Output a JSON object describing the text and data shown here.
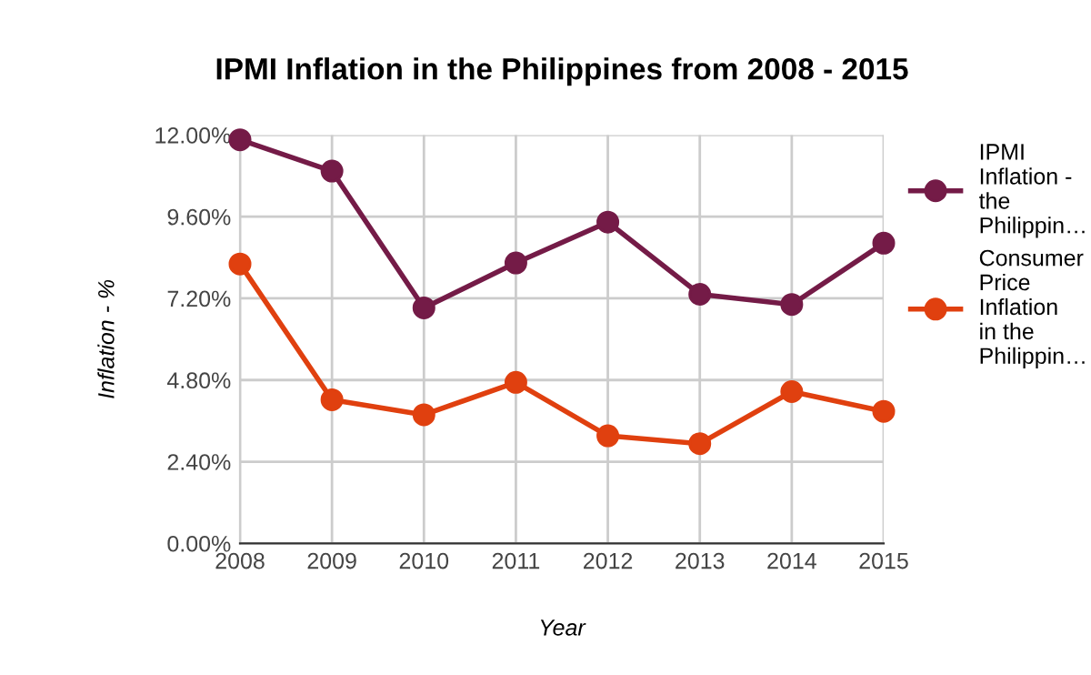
{
  "chart_data": {
    "type": "line",
    "title": "IPMI Inflation in the Philippines from 2008 - 2015",
    "xlabel": "Year",
    "ylabel": "Inflation - %",
    "categories": [
      "2008",
      "2009",
      "2010",
      "2011",
      "2012",
      "2013",
      "2014",
      "2015"
    ],
    "series": [
      {
        "name": "IPMI Inflation - the Philippin…",
        "color": "#741b47",
        "values": [
          11.86,
          10.94,
          6.92,
          8.24,
          9.44,
          7.32,
          7.02,
          8.82
        ]
      },
      {
        "name": "Consumer Price Inflation in the Philippin…",
        "color": "#e0400f",
        "values": [
          8.21,
          4.22,
          3.78,
          4.73,
          3.16,
          2.93,
          4.46,
          3.88
        ]
      }
    ],
    "ylim": [
      0,
      12
    ],
    "yticks": [
      {
        "value": 0,
        "label": "0.00%"
      },
      {
        "value": 2.4,
        "label": "2.40%"
      },
      {
        "value": 4.8,
        "label": "4.80%"
      },
      {
        "value": 7.2,
        "label": "7.20%"
      },
      {
        "value": 9.6,
        "label": "9.60%"
      },
      {
        "value": 12,
        "label": "12.00%"
      }
    ],
    "grid": true,
    "legend": "right",
    "marker": "circle",
    "line_style": "solid"
  }
}
